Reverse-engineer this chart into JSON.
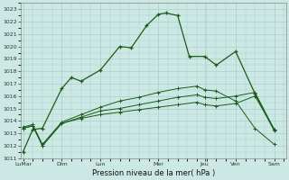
{
  "xlabel": "Pression niveau de la mer( hPa )",
  "background_color": "#cce8e4",
  "grid_color": "#aacec8",
  "line_color": "#1a5c1a",
  "ylim": [
    1011,
    1023.5
  ],
  "yticks": [
    1011,
    1012,
    1013,
    1014,
    1015,
    1016,
    1017,
    1018,
    1019,
    1020,
    1021,
    1022,
    1023
  ],
  "xtick_labels": [
    "LuMar",
    "Dim",
    "Lun",
    "Mer",
    "Jeu",
    "Ven",
    "Sam"
  ],
  "xtick_positions": [
    0,
    1.0,
    2.0,
    3.5,
    4.7,
    5.5,
    6.5
  ],
  "xlim": [
    -0.05,
    6.8
  ],
  "series1_x": [
    0,
    0.25,
    0.5,
    1.0,
    1.25,
    1.5,
    2.0,
    2.5,
    2.8,
    3.2,
    3.5,
    3.7,
    4.0,
    4.3,
    4.7,
    5.0,
    5.5,
    6.0,
    6.5
  ],
  "series1_y": [
    1011.5,
    1013.3,
    1013.4,
    1016.6,
    1017.5,
    1017.2,
    1018.1,
    1020.0,
    1019.9,
    1021.7,
    1022.6,
    1022.7,
    1022.5,
    1019.2,
    1019.2,
    1018.5,
    1019.6,
    1016.2,
    1013.2
  ],
  "series2_x": [
    0,
    0.25,
    0.5,
    1.0,
    1.5,
    2.0,
    2.5,
    3.0,
    3.5,
    4.0,
    4.5,
    4.7,
    5.0,
    5.5,
    6.0,
    6.5
  ],
  "series2_y": [
    1013.4,
    1013.6,
    1012.0,
    1013.8,
    1014.2,
    1014.5,
    1014.7,
    1014.9,
    1015.1,
    1015.3,
    1015.5,
    1015.3,
    1015.2,
    1015.4,
    1016.0,
    1013.3
  ],
  "series3_x": [
    0,
    0.25,
    0.5,
    1.0,
    1.5,
    2.0,
    2.5,
    3.0,
    3.5,
    4.0,
    4.5,
    4.7,
    5.0,
    5.5,
    6.0,
    6.5
  ],
  "series3_y": [
    1013.4,
    1013.6,
    1012.0,
    1013.8,
    1014.3,
    1014.8,
    1015.0,
    1015.3,
    1015.6,
    1015.9,
    1016.1,
    1015.9,
    1015.8,
    1016.0,
    1016.3,
    1013.3
  ],
  "series4_x": [
    0,
    0.25,
    0.5,
    1.0,
    1.5,
    2.0,
    2.5,
    3.0,
    3.5,
    4.0,
    4.5,
    4.7,
    5.0,
    5.5,
    6.0,
    6.5
  ],
  "series4_y": [
    1013.5,
    1013.7,
    1012.1,
    1013.9,
    1014.5,
    1015.1,
    1015.6,
    1015.9,
    1016.3,
    1016.6,
    1016.8,
    1016.5,
    1016.4,
    1015.6,
    1013.4,
    1012.1
  ]
}
